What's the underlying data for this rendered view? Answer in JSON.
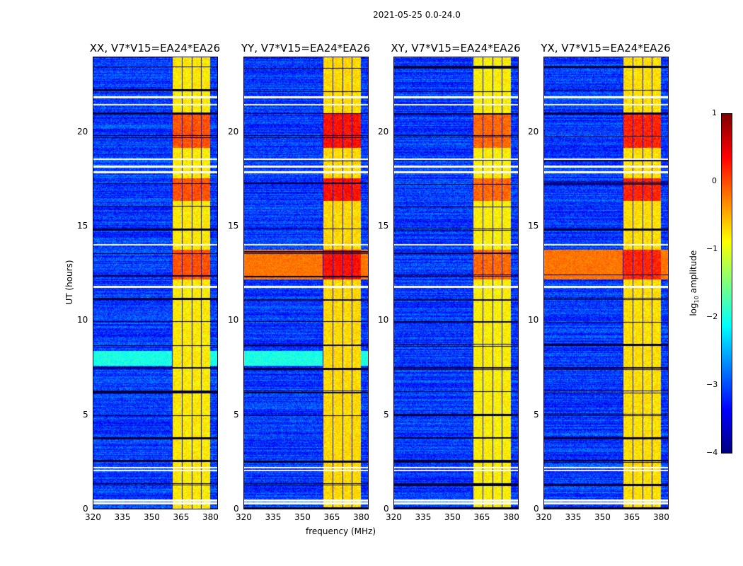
{
  "suptitle": "2021-05-25 0.0-24.0",
  "chart_data": {
    "type": "heatmap",
    "title": "2021-05-25 0.0-24.0",
    "xlabel": "frequency (MHz)",
    "ylabel": "UT (hours)",
    "xlim": [
      320,
      384
    ],
    "ylim": [
      0,
      24
    ],
    "xticks": [
      "320",
      "335",
      "350",
      "365",
      "380"
    ],
    "yticks": [
      "0",
      "5",
      "10",
      "15",
      "20"
    ],
    "panels": [
      {
        "title": "XX, V7*V15=EA24*EA26",
        "band_strength": 0.7
      },
      {
        "title": "YY, V7*V15=EA24*EA26",
        "band_strength": 1.0
      },
      {
        "title": "XY, V7*V15=EA24*EA26",
        "band_strength": 0.6
      },
      {
        "title": "YX, V7*V15=EA24*EA26",
        "band_strength": 0.9
      }
    ],
    "features": {
      "bright_band_mhz": [
        360.5,
        380
      ],
      "hot_ut_ranges": [
        [
          12.2,
          13.8
        ],
        [
          16.4,
          17.6
        ],
        [
          19.2,
          21.0
        ]
      ],
      "flagged_ut_rows": [
        0.3,
        0.45,
        2.05,
        2.2,
        11.8,
        14.05,
        17.9,
        18.2,
        18.6,
        21.5,
        21.9
      ]
    },
    "colorbar": {
      "label": "log10 amplitude",
      "label_base": "log",
      "label_sub": "10",
      "label_rest": " amplitude",
      "range": [
        -4,
        1
      ],
      "ticks": [
        "1",
        "0",
        "−1",
        "−2",
        "−3",
        "−4"
      ],
      "colormap": "jet"
    }
  }
}
